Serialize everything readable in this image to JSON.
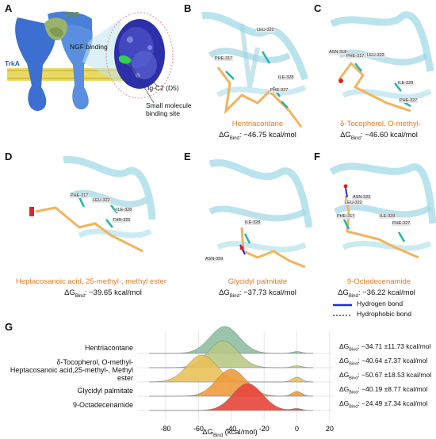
{
  "panels": {
    "A": {
      "label": "A",
      "ngf": "NGF",
      "trka": "TrkA",
      "ngf_binding": "NGF binding",
      "ig_c2": "Ig-C2 (D5)",
      "site": "Small molecule binding site"
    },
    "B": {
      "label": "B",
      "ligand": "Hentriacontane",
      "energy": ": −46.75 kcal/mol",
      "residues": [
        "LEU-322",
        "PHE-317",
        "ILE-328",
        "PHE-327"
      ]
    },
    "C": {
      "label": "C",
      "ligand": "δ-Tocopherol, O-methyl-",
      "energy": ": −46.60 kcal/mol",
      "residues": [
        "ASN-318",
        "PHE-317",
        "LEU-322",
        "ILE-328",
        "PHE-327"
      ]
    },
    "D": {
      "label": "D",
      "ligand": "Heptacosanoic acid, 25-methyl-, methyl ester",
      "energy": ": −39.65 kcal/mol",
      "residues": [
        "PHE-317",
        "LEU-322",
        "ILE-328",
        "THR-325"
      ]
    },
    "E": {
      "label": "E",
      "ligand": "Glycidyl palmitate",
      "energy": ": −37.73 kcal/mol",
      "residues": [
        "ILE-328",
        "ASN-359"
      ]
    },
    "F": {
      "label": "F",
      "ligand": "9-Octadecenamide",
      "energy": ": −36.22 kcal/mol",
      "residues": [
        "ASN-323",
        "LEU-322",
        "PHE-317",
        "ILE-328",
        "PHE-327"
      ]
    }
  },
  "dg_symbol": "ΔG",
  "dg_sub": "Bind",
  "legend": {
    "hbond": "Hydrogen bond",
    "hydrophobic": "Hydrophobic bond",
    "hbond_color": "#1a2fd6",
    "hydrophobic_color": "#555555"
  },
  "chart_data": {
    "label": "G",
    "type": "area",
    "subtype": "ridgeline",
    "xlabel": "ΔG",
    "xlabel_sub": "Bind",
    "xlabel_unit": "(kcal/mol)",
    "xlim": [
      -95,
      22
    ],
    "xticks": [
      "-80",
      "-60",
      "-40",
      "-20",
      "0",
      "20"
    ],
    "grid": true,
    "series": [
      {
        "name": "Hentriacontane",
        "color": "#8fbea2",
        "peak": -44,
        "value": "−34.71 ±11.73 kcal/mol"
      },
      {
        "name": "δ-Tocopherol, O-methyl-",
        "color": "#b9c985",
        "peak": -45,
        "value": "−40.64 ±7.37 kcal/mol"
      },
      {
        "name": "Heptacosanoic acid,25-methyl-, Methyl ester",
        "color": "#e8c25a",
        "peak": -58,
        "value": "−50.67 ±18.53 kcal/mol"
      },
      {
        "name": "Glycidyl palmitate",
        "color": "#ee9b3d",
        "peak": -40,
        "value": "−40.19 ±8.77 kcal/mol"
      },
      {
        "name": "9-Octadecenamide",
        "color": "#e8463a",
        "peak": -30,
        "value": "−24.49 ±7.34 kcal/mol"
      }
    ]
  }
}
